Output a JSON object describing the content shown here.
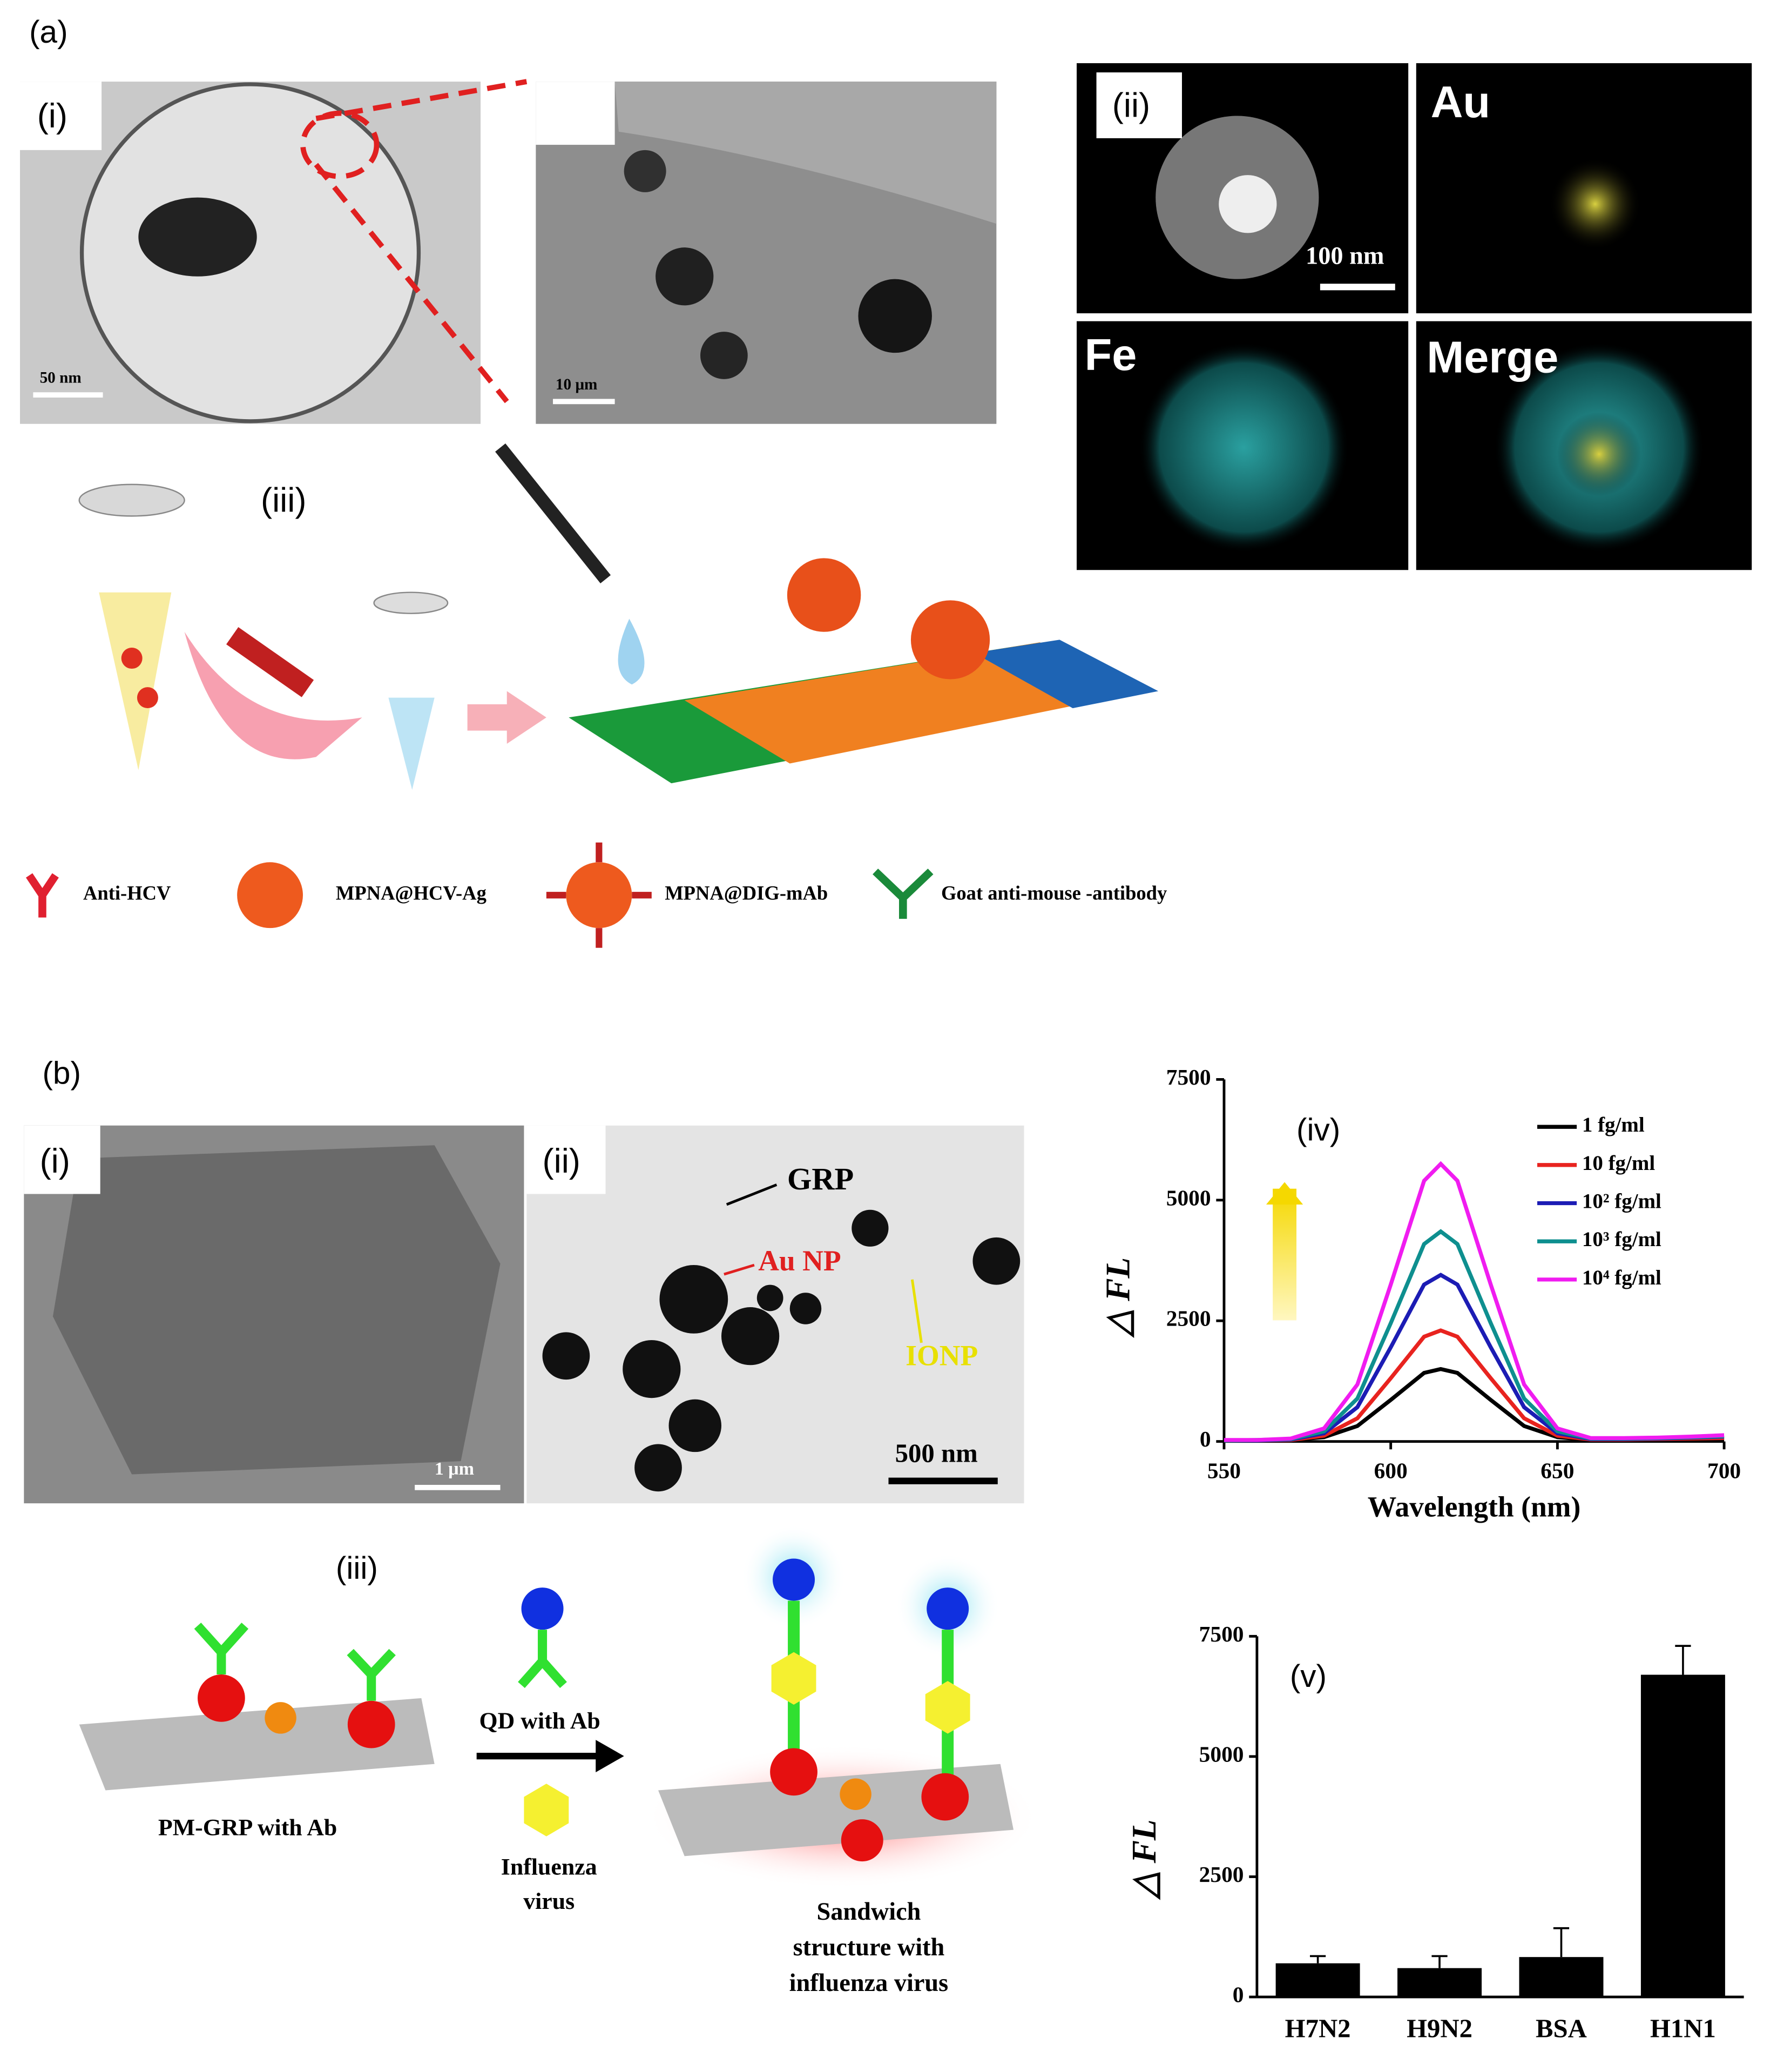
{
  "panel_a": {
    "label": "(a)",
    "sub_i": "(i)",
    "scale_i": "50 nm",
    "scale_zoom": "10 μm",
    "sub_ii": "(ii)",
    "map_scale": "100 nm",
    "map_au": "Au",
    "map_fe": "Fe",
    "map_merge": "Merge",
    "sub_iii": "(iii)",
    "legend": [
      "Anti-HCV",
      "MPNA@HCV-Ag",
      "MPNA@DIG-mAb",
      "Goat anti-mouse -antibody"
    ]
  },
  "panel_b": {
    "label": "(b)",
    "sub_i": "(i)",
    "scale_i": "1 μm",
    "sub_ii": "(ii)",
    "grp": "GRP",
    "au_np": "Au NP",
    "ionp": "IONP",
    "scale_ii": "500 nm",
    "sub_iii": "(iii)",
    "pm_grp": "PM-GRP with Ab",
    "qd": "QD with Ab",
    "virus_line1": "Influenza",
    "virus_line2": "virus",
    "sandwich_line1": "Sandwich",
    "sandwich_line2": "structure with",
    "sandwich_line3": "influenza virus"
  },
  "chart_data": [
    {
      "type": "line",
      "annotation": "(iv)",
      "x_label": "Wavelength (nm)",
      "y_label": "△ FL",
      "x": [
        550,
        560,
        570,
        580,
        590,
        600,
        610,
        615,
        620,
        630,
        640,
        650,
        660,
        670,
        680,
        690,
        700
      ],
      "xlim": [
        550,
        700
      ],
      "xticks": [
        550,
        600,
        650,
        700
      ],
      "ylim": [
        0,
        7500
      ],
      "yticks": [
        0,
        2500,
        5000,
        7500
      ],
      "series": [
        {
          "name": "1 fg/ml",
          "color": "#000000",
          "values": [
            20,
            20,
            30,
            90,
            320,
            860,
            1420,
            1500,
            1420,
            860,
            320,
            90,
            30,
            30,
            40,
            50,
            60
          ]
        },
        {
          "name": "10 fg/ml",
          "color": "#e8231f",
          "values": [
            20,
            20,
            30,
            120,
            480,
            1310,
            2170,
            2300,
            2170,
            1310,
            480,
            120,
            40,
            40,
            50,
            60,
            70
          ]
        },
        {
          "name": "10² fg/ml",
          "color": "#1c1cb4",
          "values": [
            20,
            20,
            40,
            170,
            710,
            1950,
            3250,
            3450,
            3250,
            1950,
            710,
            170,
            50,
            50,
            60,
            80,
            100
          ]
        },
        {
          "name": "10³ fg/ml",
          "color": "#0e8f8f",
          "values": [
            20,
            30,
            50,
            210,
            890,
            2450,
            4090,
            4350,
            4090,
            2450,
            890,
            210,
            60,
            60,
            70,
            90,
            110
          ]
        },
        {
          "name": "10⁴ fg/ml",
          "color": "#f01cf0",
          "values": [
            30,
            30,
            60,
            270,
            1180,
            3250,
            5400,
            5750,
            5400,
            3250,
            1180,
            270,
            70,
            70,
            80,
            100,
            130
          ]
        }
      ]
    },
    {
      "type": "bar",
      "annotation": "(v)",
      "y_label": "△ FL",
      "color": "#000000",
      "categories": [
        "H7N2",
        "H9N2",
        "BSA",
        "H1N1"
      ],
      "values": [
        700,
        600,
        830,
        6700
      ],
      "errors": [
        150,
        250,
        600,
        600
      ],
      "ylim": [
        0,
        7500
      ],
      "yticks": [
        0,
        2500,
        5000,
        7500
      ]
    }
  ]
}
